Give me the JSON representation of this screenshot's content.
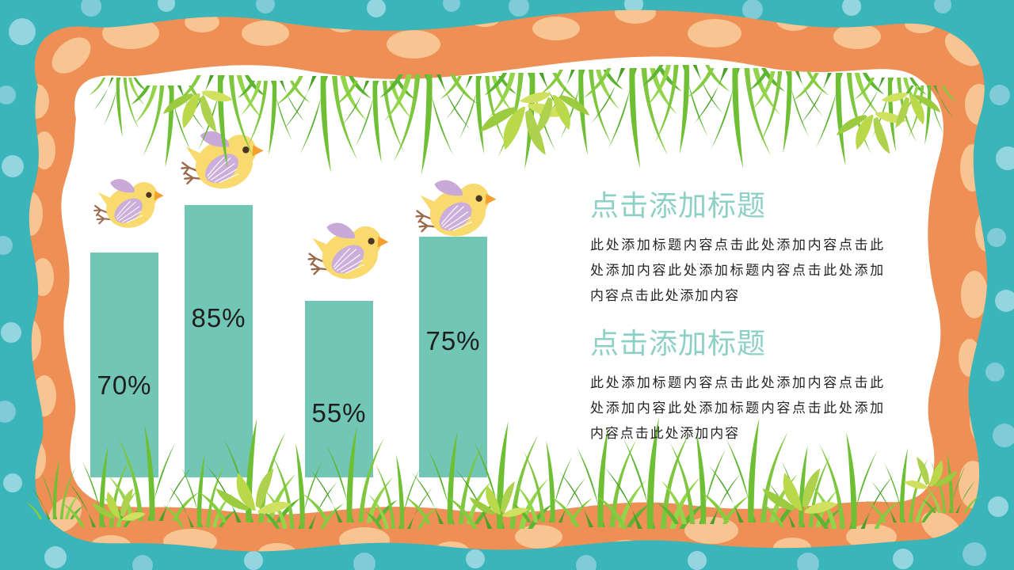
{
  "slide": {
    "kind": "presentation-slide",
    "colors": {
      "background_teal": "#3ab5ba",
      "polka_dot_blue": "#7fcbd8",
      "frame_orange": "#ee8f55",
      "frame_spot_peach": "#f8c492",
      "canvas_white": "#ffffff",
      "grass_green": "#6fbf35",
      "bird_yellow": "#f8da6e",
      "bird_wing_purple": "#ccaeda"
    }
  },
  "chart_data": {
    "type": "bar",
    "categories": [
      "",
      "",
      "",
      ""
    ],
    "values": [
      70,
      85,
      55,
      75
    ],
    "labels": [
      "70%",
      "85%",
      "55%",
      "75%"
    ],
    "ylim": [
      0,
      100
    ],
    "bar_color": "#72c6b6",
    "label_color": "#1e1e1e",
    "gridlines": false,
    "axes_visible": false,
    "title": ""
  },
  "sections": [
    {
      "title": "点击添加标题",
      "title_color": "#8dd0c6",
      "body": "此处添加标题内容点击此处添加内容点击此处添加内容此处添加标题内容点击此处添加内容点击此处添加内容",
      "body_color": "#252525"
    },
    {
      "title": "点击添加标题",
      "title_color": "#8dd0c6",
      "body": "此处添加标题内容点击此处添加内容点击此处添加内容此处添加标题内容点击此处添加内容点击此处添加内容",
      "body_color": "#252525"
    }
  ],
  "decorations": {
    "birds": {
      "icon": "chick-icon",
      "count": 4
    },
    "grass_edges": [
      "top",
      "bottom"
    ],
    "frame_style": "wavy polka-dot border"
  }
}
